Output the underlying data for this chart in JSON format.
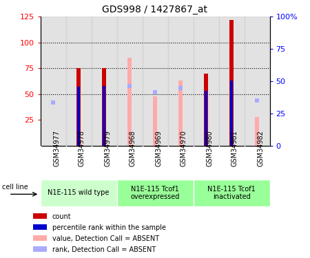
{
  "title": "GDS998 / 1427867_at",
  "samples": [
    "GSM34977",
    "GSM34978",
    "GSM34979",
    "GSM34968",
    "GSM34969",
    "GSM34970",
    "GSM34980",
    "GSM34981",
    "GSM34982"
  ],
  "count_values": [
    null,
    75,
    75,
    null,
    null,
    null,
    70,
    122,
    null
  ],
  "percentile_values": [
    null,
    57,
    58,
    null,
    null,
    null,
    53,
    63,
    null
  ],
  "absent_value_values": [
    null,
    null,
    null,
    85,
    48,
    63,
    null,
    null,
    28
  ],
  "absent_rank_values": [
    42,
    null,
    null,
    58,
    52,
    56,
    null,
    null,
    44
  ],
  "ylim_left": [
    0,
    125
  ],
  "ylim_right": [
    0,
    100
  ],
  "left_ticks": [
    25,
    50,
    75,
    100,
    125
  ],
  "right_ticks": [
    0,
    25,
    50,
    75,
    100
  ],
  "right_tick_labels": [
    "0",
    "25",
    "50",
    "75",
    "100%"
  ],
  "hline_values": [
    50,
    75,
    100
  ],
  "count_color": "#cc0000",
  "percentile_color": "#0000cc",
  "absent_value_color": "#ffaaaa",
  "absent_rank_color": "#aaaaff",
  "group_info": [
    {
      "label": "N1E-115 wild type",
      "start": 0,
      "end": 3,
      "color": "#ccffcc"
    },
    {
      "label": "N1E-115 Tcof1\noverexpressed",
      "start": 3,
      "end": 6,
      "color": "#99ff99"
    },
    {
      "label": "N1E-115 Tcof1\ninactivated",
      "start": 6,
      "end": 9,
      "color": "#99ff99"
    }
  ],
  "cell_line_label": "cell line",
  "legend_items": [
    {
      "color": "#cc0000",
      "label": "count"
    },
    {
      "color": "#0000cc",
      "label": "percentile rank within the sample"
    },
    {
      "color": "#ffaaaa",
      "label": "value, Detection Call = ABSENT"
    },
    {
      "color": "#aaaaff",
      "label": "rank, Detection Call = ABSENT"
    }
  ]
}
